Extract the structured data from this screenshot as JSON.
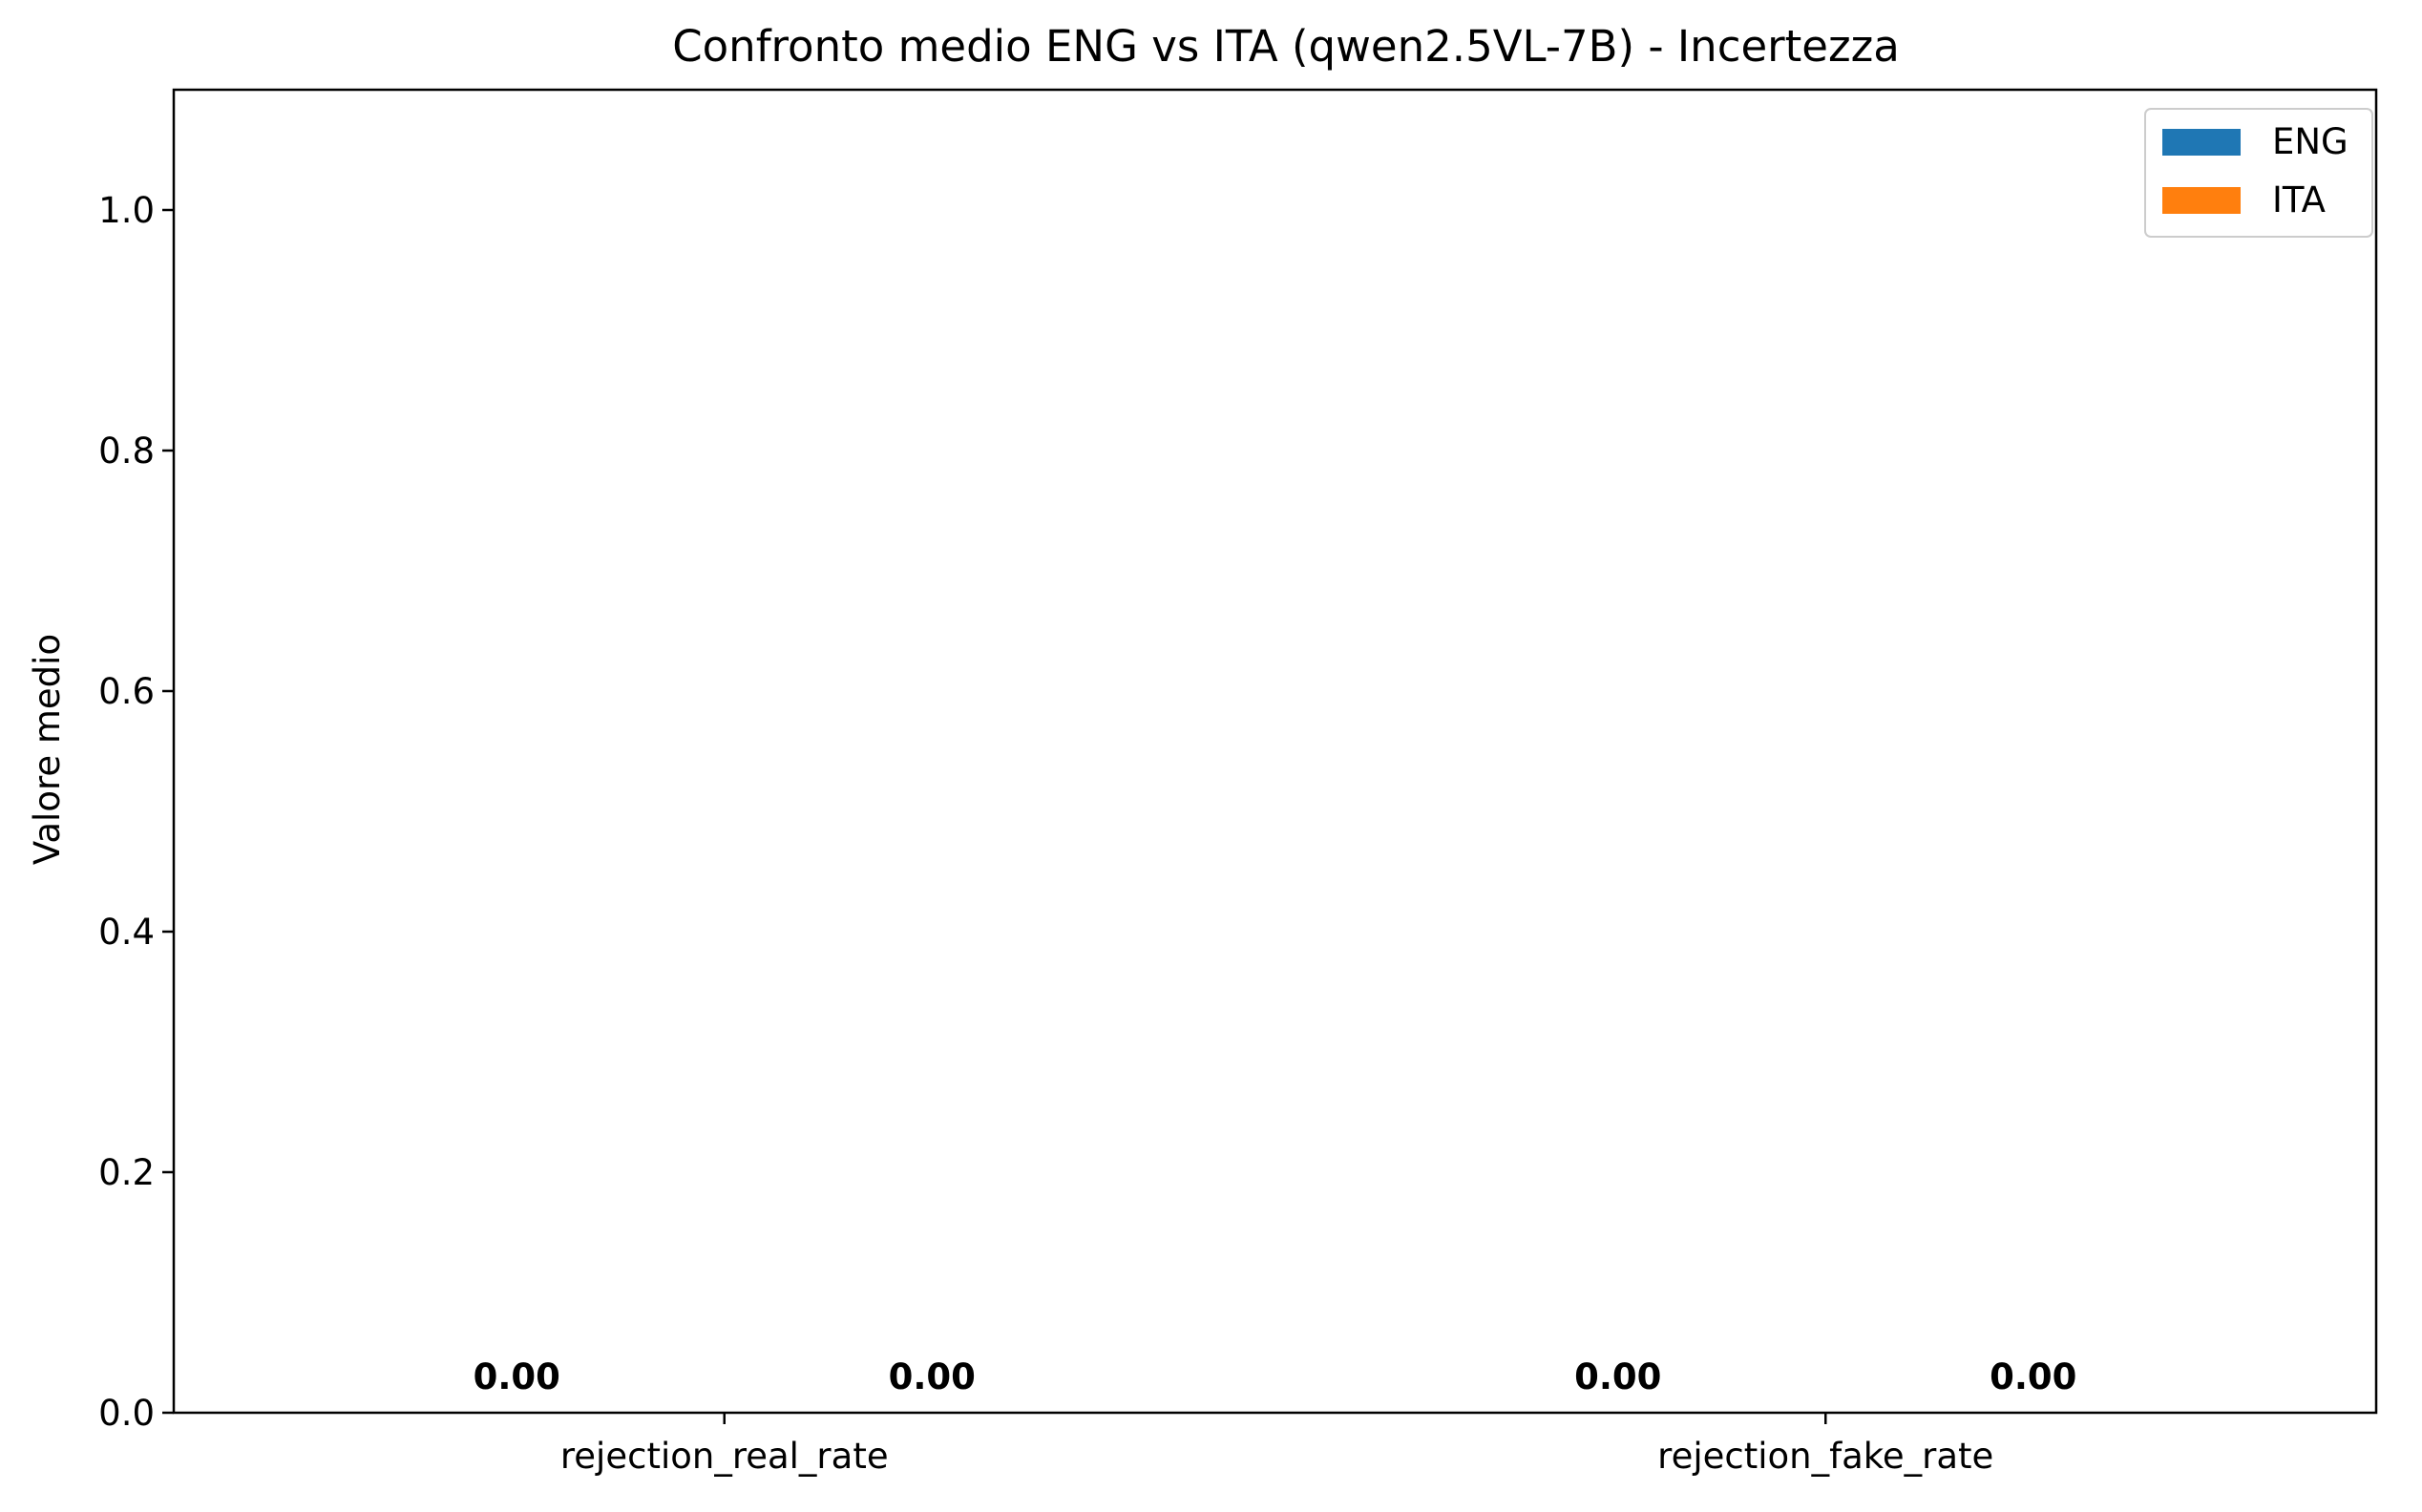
{
  "chart_data": {
    "type": "bar",
    "title": "Confronto medio ENG vs ITA (qwen2.5VL-7B) - Incertezza",
    "xlabel": "",
    "ylabel": "Valore medio",
    "categories": [
      "rejection_real_rate",
      "rejection_fake_rate"
    ],
    "series": [
      {
        "name": "ENG",
        "values": [
          0.0,
          0.0
        ],
        "labels": [
          "0.00",
          "0.00"
        ],
        "color": "#1f77b4"
      },
      {
        "name": "ITA",
        "values": [
          0.0,
          0.0
        ],
        "labels": [
          "0.00",
          "0.00"
        ],
        "color": "#ff7f0e"
      }
    ],
    "ylim": [
      0,
      1.1
    ],
    "yticks": [
      {
        "value": 0.0,
        "label": "0.0"
      },
      {
        "value": 0.2,
        "label": "0.2"
      },
      {
        "value": 0.4,
        "label": "0.4"
      },
      {
        "value": 0.6,
        "label": "0.6"
      },
      {
        "value": 0.8,
        "label": "0.8"
      },
      {
        "value": 1.0,
        "label": "1.0"
      }
    ],
    "grid": false,
    "legend_position": "top-right"
  }
}
